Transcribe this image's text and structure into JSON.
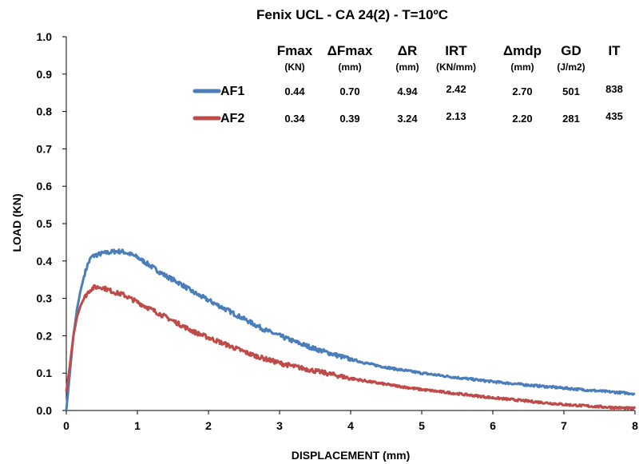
{
  "chart_data": {
    "type": "line",
    "title": "Fenix UCL - CA 24(2) - T=10ºC",
    "xlabel": "DISPLACEMENT (mm)",
    "ylabel": "LOAD (KN)",
    "xlim": [
      0,
      8
    ],
    "ylim": [
      0,
      1.0
    ],
    "xticks": [
      "0",
      "1",
      "2",
      "3",
      "4",
      "5",
      "6",
      "7",
      "8"
    ],
    "yticks": [
      "0.0",
      "0.1",
      "0.2",
      "0.3",
      "0.4",
      "0.5",
      "0.6",
      "0.7",
      "0.8",
      "0.9",
      "1.0"
    ],
    "grid": false,
    "columns": [
      {
        "name": "Fmax",
        "unit": "(KN)"
      },
      {
        "name": "ΔFmax",
        "unit": "(mm)"
      },
      {
        "name": "ΔR",
        "unit": "(mm)"
      },
      {
        "name": "IRT",
        "unit": "(KN/mm)"
      },
      {
        "name": "Δmdp",
        "unit": "(mm)"
      },
      {
        "name": "GD",
        "unit": "(J/m2)"
      },
      {
        "name": "IT",
        "unit": ""
      }
    ],
    "series": [
      {
        "name": "AF1",
        "color": "#4a7ebb",
        "table": [
          "0.44",
          "0.70",
          "4.94",
          "2.42",
          "2.70",
          "501",
          "838"
        ],
        "x": [
          0,
          0.05,
          0.1,
          0.15,
          0.2,
          0.25,
          0.3,
          0.35,
          0.4,
          0.5,
          0.6,
          0.7,
          0.8,
          0.9,
          1.0,
          1.2,
          1.4,
          1.6,
          1.8,
          2.0,
          2.2,
          2.4,
          2.6,
          2.8,
          3.0,
          3.2,
          3.5,
          3.8,
          4.0,
          4.3,
          4.6,
          5.0,
          5.5,
          6.0,
          6.5,
          7.0,
          7.5,
          8.0
        ],
        "y": [
          0.0,
          0.1,
          0.2,
          0.27,
          0.32,
          0.36,
          0.39,
          0.41,
          0.415,
          0.42,
          0.423,
          0.426,
          0.425,
          0.418,
          0.41,
          0.385,
          0.36,
          0.34,
          0.315,
          0.295,
          0.275,
          0.255,
          0.235,
          0.215,
          0.2,
          0.185,
          0.165,
          0.148,
          0.137,
          0.123,
          0.112,
          0.1,
          0.088,
          0.077,
          0.068,
          0.06,
          0.052,
          0.045
        ]
      },
      {
        "name": "AF2",
        "color": "#be4b48",
        "table": [
          "0.34",
          "0.39",
          "3.24",
          "2.13",
          "2.20",
          "281",
          "435"
        ],
        "x": [
          0,
          0.05,
          0.1,
          0.15,
          0.2,
          0.25,
          0.3,
          0.35,
          0.4,
          0.5,
          0.6,
          0.7,
          0.8,
          0.9,
          1.0,
          1.2,
          1.4,
          1.6,
          1.8,
          2.0,
          2.2,
          2.4,
          2.6,
          2.8,
          3.0,
          3.2,
          3.5,
          3.8,
          4.0,
          4.3,
          4.6,
          5.0,
          5.5,
          6.0,
          6.5,
          7.0,
          7.5,
          8.0
        ],
        "y": [
          0.05,
          0.12,
          0.2,
          0.25,
          0.28,
          0.3,
          0.315,
          0.325,
          0.33,
          0.33,
          0.322,
          0.315,
          0.31,
          0.3,
          0.29,
          0.27,
          0.25,
          0.23,
          0.21,
          0.195,
          0.18,
          0.165,
          0.15,
          0.138,
          0.127,
          0.118,
          0.106,
          0.094,
          0.086,
          0.076,
          0.067,
          0.056,
          0.045,
          0.034,
          0.025,
          0.016,
          0.01,
          0.005
        ]
      }
    ]
  }
}
